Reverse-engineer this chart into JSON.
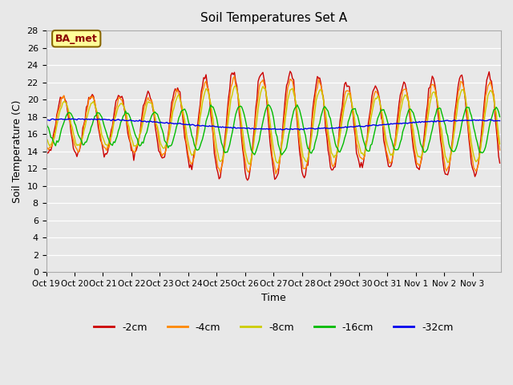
{
  "title": "Soil Temperatures Set A",
  "xlabel": "Time",
  "ylabel": "Soil Temperature (C)",
  "ylim": [
    0,
    28
  ],
  "yticks": [
    0,
    2,
    4,
    6,
    8,
    10,
    12,
    14,
    16,
    18,
    20,
    22,
    24,
    26,
    28
  ],
  "background_color": "#e8e8e8",
  "plot_bg_color": "#e8e8e8",
  "grid_color": "#ffffff",
  "series_colors": {
    "-2cm": "#cc0000",
    "-4cm": "#ff8800",
    "-8cm": "#cccc00",
    "-16cm": "#00bb00",
    "-32cm": "#0000ee"
  },
  "series_labels": [
    "-2cm",
    "-4cm",
    "-8cm",
    "-16cm",
    "-32cm"
  ],
  "annotation_text": "BA_met",
  "annotation_bg": "#ffff99",
  "annotation_border": "#886600",
  "line_width": 1.0,
  "xtick_labels": [
    "Oct 19",
    "Oct 20",
    "Oct 21",
    "Oct 22",
    "Oct 23",
    "Oct 24",
    "Oct 25",
    "Oct 26",
    "Oct 27",
    "Oct 28",
    "Oct 29",
    "Oct 30",
    "Oct 31",
    "Nov 1",
    "Nov 2",
    "Nov 3"
  ]
}
